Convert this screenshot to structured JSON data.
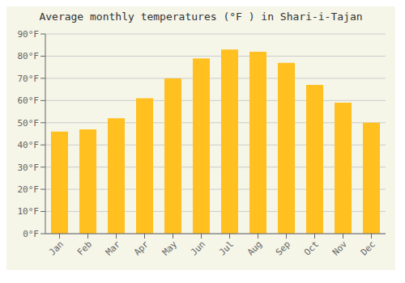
{
  "chart_data": {
    "type": "bar",
    "title": "Average monthly temperatures (°F ) in Shari-i-Tajan",
    "categories": [
      "Jan",
      "Feb",
      "Mar",
      "Apr",
      "May",
      "Jun",
      "Jul",
      "Aug",
      "Sep",
      "Oct",
      "Nov",
      "Dec"
    ],
    "values": [
      46,
      47,
      52,
      61,
      70,
      79,
      83,
      82,
      77,
      67,
      59,
      50
    ],
    "color": "#FFC020",
    "ylim": [
      0,
      90
    ],
    "yticks": [
      {
        "value": 0,
        "label": "0°F"
      },
      {
        "value": 10,
        "label": "10°F"
      },
      {
        "value": 20,
        "label": "20°F"
      },
      {
        "value": 30,
        "label": "30°F"
      },
      {
        "value": 40,
        "label": "40°F"
      },
      {
        "value": 50,
        "label": "50°F"
      },
      {
        "value": 60,
        "label": "60°F"
      },
      {
        "value": 70,
        "label": "70°F"
      },
      {
        "value": 80,
        "label": "80°F"
      },
      {
        "value": 90,
        "label": "90°F"
      }
    ],
    "grid": true
  }
}
